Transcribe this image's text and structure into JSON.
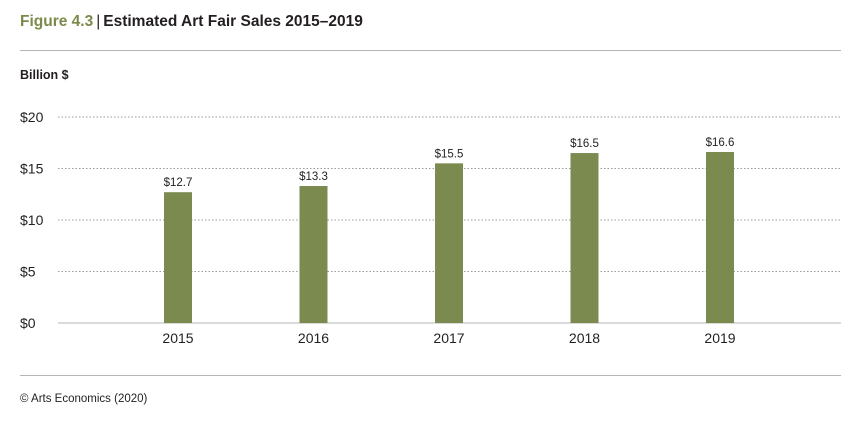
{
  "header": {
    "figure_label": "Figure 4.3",
    "separator": "|",
    "title": "Estimated Art Fair Sales 2015–2019"
  },
  "unit_label": "Billion $",
  "source": "© Arts Economics (2020)",
  "colors": {
    "bar": "#7b8a4f",
    "accent": "#7b8a4a",
    "grid": "#9a9a9a",
    "axis": "#b5b5b5"
  },
  "chart_data": {
    "type": "bar",
    "title": "Estimated Art Fair Sales 2015–2019",
    "ylabel": "Billion $",
    "xlabel": "",
    "categories": [
      "2015",
      "2016",
      "2017",
      "2018",
      "2019"
    ],
    "values": [
      12.7,
      13.3,
      15.5,
      16.5,
      16.6
    ],
    "value_labels": [
      "$12.7",
      "$13.3",
      "$15.5",
      "$16.5",
      "$16.6"
    ],
    "ylim": [
      0,
      20
    ],
    "yticks": [
      0,
      5,
      10,
      15,
      20
    ],
    "ytick_labels": [
      "$0",
      "$5",
      "$10",
      "$15",
      "$20"
    ],
    "grid": true,
    "legend": "none"
  }
}
